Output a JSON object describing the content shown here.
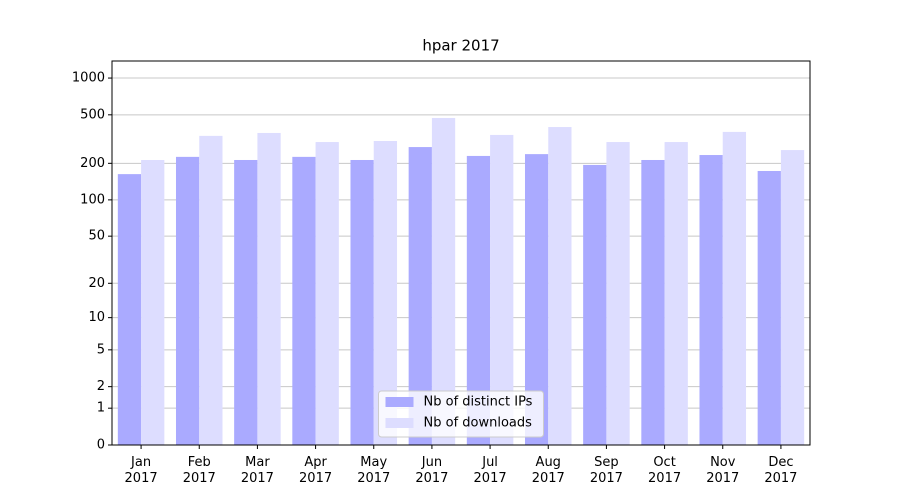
{
  "chart_data": {
    "type": "bar",
    "title": "hpar 2017",
    "categories": [
      "Jan 2017",
      "Feb 2017",
      "Mar 2017",
      "Apr 2017",
      "May 2017",
      "Jun 2017",
      "Jul 2017",
      "Aug 2017",
      "Sep 2017",
      "Oct 2017",
      "Nov 2017",
      "Dec 2017"
    ],
    "series": [
      {
        "name": "Nb of distinct IPs",
        "color": "#aaaaff",
        "values": [
          163,
          226,
          213,
          226,
          213,
          272,
          230,
          238,
          194,
          213,
          234,
          173
        ]
      },
      {
        "name": "Nb of downloads",
        "color": "#ddddff",
        "values": [
          213,
          336,
          355,
          299,
          305,
          471,
          342,
          397,
          299,
          299,
          362,
          257
        ]
      }
    ],
    "yscale": "log1p",
    "ylim": [
      0,
      1379
    ],
    "yticks": [
      0,
      1,
      2,
      5,
      10,
      20,
      50,
      100,
      200,
      500,
      1000
    ],
    "grid": true,
    "legend": "lower center"
  }
}
